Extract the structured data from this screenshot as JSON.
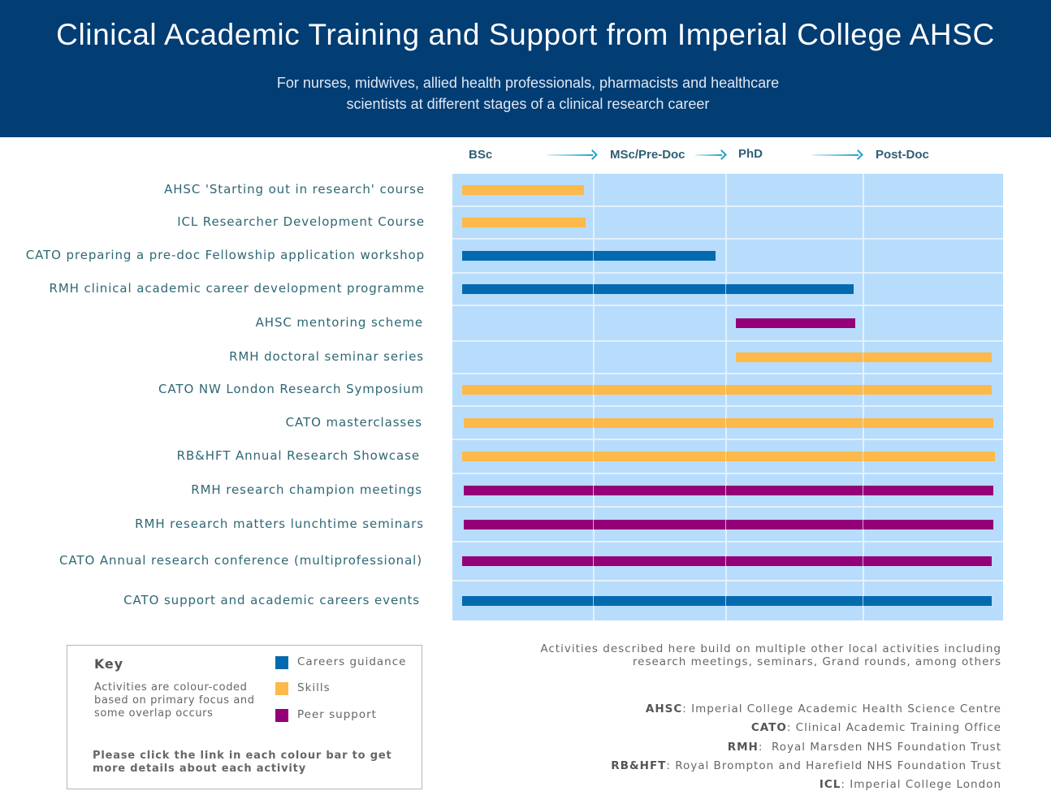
{
  "header": {
    "title": "Clinical Academic Training and Support from Imperial College AHSC",
    "subtitle_line1": "For nurses, midwives, allied health professionals, pharmacists and healthcare",
    "subtitle_line2": "scientists at different stages of a clinical research career"
  },
  "colors": {
    "header_bg": "#023d74",
    "grid_bg": "#b8dcfb",
    "careers_guidance": "#046ab0",
    "skills": "#fdb94a",
    "peer_support": "#950078"
  },
  "chart_data": {
    "type": "gantt",
    "title": "Clinical Academic Training and Support from Imperial College AHSC",
    "x_axis": {
      "stages": [
        "BSc",
        "MSc/Pre-Doc",
        "PhD",
        "Post-Doc"
      ],
      "range": [
        0,
        4
      ],
      "note": "Each stage occupies one unit; bar start/end expressed in stage units (0 = start of BSc, 4 = end of Post-Doc)"
    },
    "categories_legend": [
      {
        "key": "careers_guidance",
        "label": "Careers guidance"
      },
      {
        "key": "skills",
        "label": "Skills"
      },
      {
        "key": "peer_support",
        "label": "Peer support"
      }
    ],
    "activities": [
      {
        "label": "AHSC 'Starting out in research' course",
        "category": "skills",
        "start": 0.07,
        "end": 0.93
      },
      {
        "label": "ICL Researcher Development Course",
        "category": "skills",
        "start": 0.07,
        "end": 0.94
      },
      {
        "label": "CATO preparing a pre-doc Fellowship application workshop",
        "category": "careers_guidance",
        "start": 0.07,
        "end": 1.92
      },
      {
        "label": "RMH clinical academic career development programme",
        "category": "careers_guidance",
        "start": 0.07,
        "end": 2.93
      },
      {
        "label": "AHSC mentoring scheme",
        "category": "peer_support",
        "start": 2.07,
        "end": 2.94
      },
      {
        "label": "RMH doctoral seminar series",
        "category": "skills",
        "start": 2.07,
        "end": 3.92
      },
      {
        "label": "CATO NW London Research Symposium",
        "category": "skills",
        "start": 0.07,
        "end": 3.92
      },
      {
        "label": "CATO masterclasses",
        "category": "skills",
        "start": 0.08,
        "end": 3.93
      },
      {
        "label": "RB&HFT Annual Research Showcase",
        "category": "skills",
        "start": 0.07,
        "end": 3.94
      },
      {
        "label": "RMH research champion meetings",
        "category": "peer_support",
        "start": 0.08,
        "end": 3.93
      },
      {
        "label": "RMH research matters lunchtime seminars",
        "category": "peer_support",
        "start": 0.08,
        "end": 3.93
      },
      {
        "label": "CATO Annual research conference (multiprofessional)",
        "category": "peer_support",
        "start": 0.07,
        "end": 3.92
      },
      {
        "label": "CATO support and academic careers events",
        "category": "careers_guidance",
        "start": 0.07,
        "end": 3.92
      }
    ]
  },
  "key": {
    "title": "Key",
    "description": "Activities are colour-coded based on primary focus and some overlap occurs",
    "items": [
      {
        "label": "Careers guidance",
        "color": "#046ab0"
      },
      {
        "label": "Skills",
        "color": "#fdb94a"
      },
      {
        "label": "Peer support",
        "color": "#950078"
      }
    ],
    "instruction": "Please click the link in each colour bar to get more details about each activity"
  },
  "note": {
    "line1": "Activities described here build on multiple other local activities including",
    "line2": "research meetings, seminars, Grand rounds, among others"
  },
  "abbreviations": [
    {
      "abbr": "AHSC",
      "sep": ": ",
      "full": "Imperial College Academic Health Science Centre"
    },
    {
      "abbr": "CATO",
      "sep": ": ",
      "full": "Clinical Academic Training Office"
    },
    {
      "abbr": "RMH",
      "sep": ":  ",
      "full": "Royal Marsden NHS Foundation Trust"
    },
    {
      "abbr": "RB&HFT",
      "sep": ": ",
      "full": "Royal Brompton and Harefield NHS Foundation Trust"
    },
    {
      "abbr": "ICL",
      "sep": ": ",
      "full": "Imperial College London"
    }
  ]
}
